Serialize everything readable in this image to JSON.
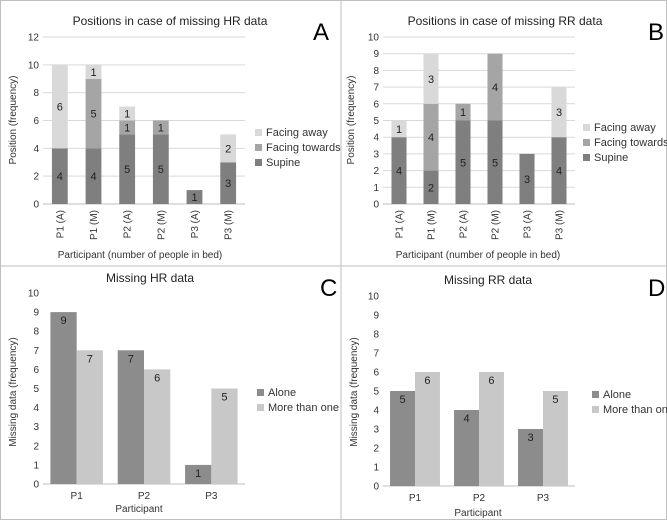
{
  "chart_data": [
    {
      "type": "bar",
      "stacked": true,
      "panel_letter": "A",
      "title": "Positions in case of missing HR data",
      "xlabel": "Participant (number of people in bed)",
      "ylabel": "Position (frequency)",
      "ylim": [
        0,
        12
      ],
      "yticks": [
        0,
        2,
        4,
        6,
        8,
        10,
        12
      ],
      "grid": true,
      "legend": "right",
      "categories": [
        "P1 (A)",
        "P1 (M)",
        "P2 (A)",
        "P2 (M)",
        "P3 (A)",
        "P3 (M)"
      ],
      "series": [
        {
          "name": "Supine",
          "color": "#7f7f7f",
          "values": [
            4,
            4,
            5,
            5,
            1,
            3
          ]
        },
        {
          "name": "Facing towards",
          "color": "#a5a5a5",
          "values": [
            0,
            5,
            1,
            1,
            0,
            0
          ]
        },
        {
          "name": "Facing away",
          "color": "#d9d9d9",
          "values": [
            6,
            1,
            1,
            0,
            0,
            2
          ]
        }
      ]
    },
    {
      "type": "bar",
      "stacked": true,
      "panel_letter": "B",
      "title": "Positions in case of missing RR data",
      "xlabel": "Participant (number of people in bed)",
      "ylabel": "Position (frequency)",
      "ylim": [
        0,
        10
      ],
      "yticks": [
        0,
        1,
        2,
        3,
        4,
        5,
        6,
        7,
        8,
        9,
        10
      ],
      "grid": true,
      "legend": "right",
      "categories": [
        "P1 (A)",
        "P1 (M)",
        "P2 (A)",
        "P2 (M)",
        "P3 (A)",
        "P3 (M)"
      ],
      "series": [
        {
          "name": "Supine",
          "color": "#7f7f7f",
          "values": [
            4,
            2,
            5,
            5,
            3,
            4
          ]
        },
        {
          "name": "Facing towards",
          "color": "#a5a5a5",
          "values": [
            0,
            4,
            1,
            4,
            0,
            0
          ]
        },
        {
          "name": "Facing away",
          "color": "#d9d9d9",
          "values": [
            1,
            3,
            0,
            0,
            0,
            3
          ]
        }
      ]
    },
    {
      "type": "bar",
      "stacked": false,
      "panel_letter": "C",
      "title": "Missing HR data",
      "xlabel": "Participant",
      "ylabel": "Missing data (frequency)",
      "ylim": [
        0,
        10
      ],
      "yticks": [
        0,
        1,
        2,
        3,
        4,
        5,
        6,
        7,
        8,
        9,
        10
      ],
      "grid": false,
      "legend": "right",
      "categories": [
        "P1",
        "P2",
        "P3"
      ],
      "series": [
        {
          "name": "Alone",
          "color": "#8c8c8c",
          "values": [
            9,
            7,
            1
          ]
        },
        {
          "name": "More than one",
          "color": "#c8c8c8",
          "values": [
            7,
            6,
            5
          ]
        }
      ]
    },
    {
      "type": "bar",
      "stacked": false,
      "panel_letter": "D",
      "title": "Missing RR data",
      "xlabel": "Participant",
      "ylabel": "Missing data (frequency)",
      "ylim": [
        0,
        10
      ],
      "yticks": [
        0,
        1,
        2,
        3,
        4,
        5,
        6,
        7,
        8,
        9,
        10
      ],
      "grid": false,
      "legend": "right",
      "categories": [
        "P1",
        "P2",
        "P3"
      ],
      "series": [
        {
          "name": "Alone",
          "color": "#8c8c8c",
          "values": [
            5,
            4,
            3
          ]
        },
        {
          "name": "More than one",
          "color": "#c8c8c8",
          "values": [
            6,
            6,
            5
          ]
        }
      ]
    }
  ]
}
